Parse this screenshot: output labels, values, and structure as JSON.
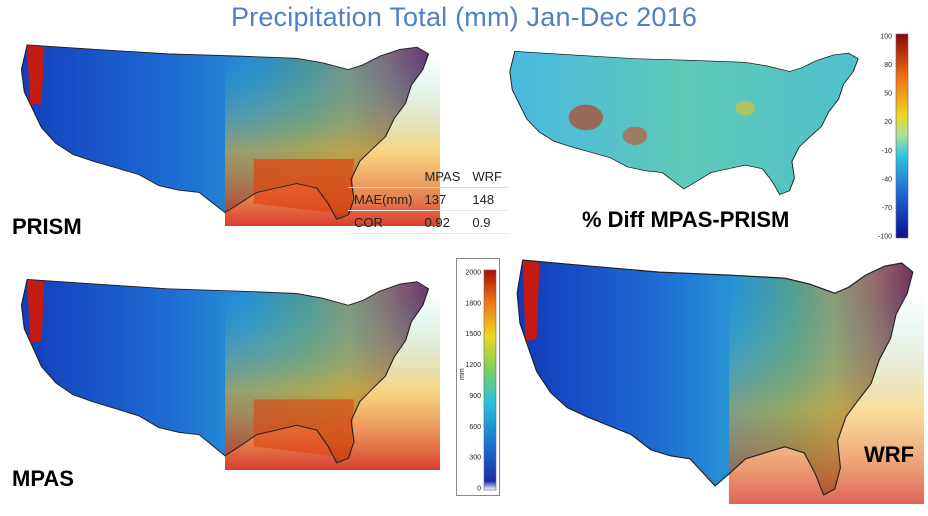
{
  "title": "Precipitation Total (mm) Jan-Dec 2016",
  "panels": {
    "prism": {
      "label": "PRISM"
    },
    "diff": {
      "label": "% Diff MPAS-PRISM"
    },
    "mpas": {
      "label": "MPAS"
    },
    "wrf": {
      "label": "WRF"
    }
  },
  "stats_table": {
    "headers": [
      "",
      "MPAS",
      "WRF"
    ],
    "rows": [
      [
        "MAE(mm)",
        "137",
        "148"
      ],
      [
        "COR",
        "0.92",
        "0.9"
      ]
    ]
  },
  "precip_colorbar": {
    "unit": "mm",
    "ticks": [
      "2000",
      "1800",
      "1500",
      "1200",
      "900",
      "600",
      "300",
      "0"
    ]
  },
  "diff_colorbar": {
    "ticks": [
      "100",
      "80",
      "50",
      "20",
      "-10",
      "-40",
      "-70",
      "-100"
    ]
  },
  "colors": {
    "title": "#4f7fc5",
    "precip_low": "#0a1aa8",
    "precip_mid": "#22c3de",
    "precip_high": "#c8140a"
  }
}
